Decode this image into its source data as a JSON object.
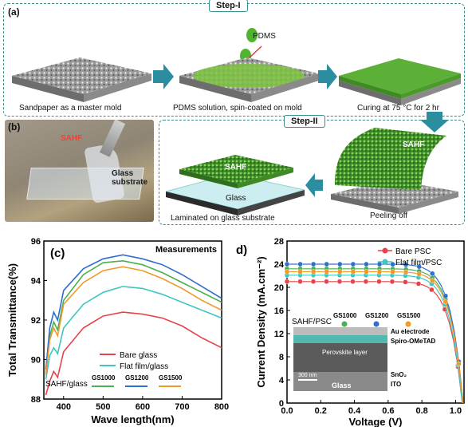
{
  "labels": {
    "a": "(a)",
    "b": "(b)",
    "c": "(c)",
    "d": "d)",
    "step1": "Step-I",
    "step2": "Step-II",
    "pdms": "PDMS",
    "cap_sandpaper": "Sandpaper as a master mold",
    "cap_spin": "PDMS solution, spin-coated on mold",
    "cap_curing": "Curing at 75 °C for 2 hr",
    "cap_peel": "Peeling off",
    "cap_laminated": "Laminated on glass substrate",
    "sahf": "SAHF",
    "glass": "Glass",
    "photo_sahf": "SAHF",
    "photo_glass": "Glass substrate"
  },
  "chart_data": [
    {
      "type": "line",
      "title": "Measurements",
      "xlabel": "Wave length(nm)",
      "ylabel": "Total Transmittance(%)",
      "xlim": [
        350,
        800
      ],
      "ylim": [
        88,
        96
      ],
      "xticks": [
        "400",
        "500",
        "600",
        "700",
        "800"
      ],
      "yticks": [
        "88",
        "90",
        "92",
        "94",
        "96"
      ],
      "legend": [
        "Bare glass",
        "Flat film/glass"
      ],
      "legend2_prefix": "SAHF/glass",
      "legend2": [
        "GS1000",
        "GS1200",
        "GS1500"
      ],
      "series": [
        {
          "name": "Bare glass",
          "color": "#e8424a",
          "x": [
            355,
            365,
            375,
            385,
            400,
            450,
            500,
            550,
            600,
            650,
            700,
            750,
            800
          ],
          "y": [
            88.2,
            88.9,
            89.4,
            89.1,
            90.4,
            91.6,
            92.2,
            92.4,
            92.3,
            92.1,
            91.7,
            91.1,
            90.6
          ]
        },
        {
          "name": "Flat film/glass",
          "color": "#3ec6c0",
          "x": [
            355,
            365,
            375,
            385,
            400,
            450,
            500,
            550,
            600,
            650,
            700,
            750,
            800
          ],
          "y": [
            89.0,
            90.2,
            90.6,
            90.3,
            91.6,
            92.8,
            93.4,
            93.7,
            93.6,
            93.3,
            92.9,
            92.5,
            92.1
          ]
        },
        {
          "name": "GS1000",
          "color": "#4caf50",
          "x": [
            355,
            365,
            375,
            385,
            400,
            450,
            500,
            550,
            600,
            650,
            700,
            750,
            800
          ],
          "y": [
            89.3,
            91.2,
            91.9,
            91.5,
            93.0,
            94.3,
            94.9,
            95.0,
            94.8,
            94.4,
            93.9,
            93.4,
            92.9
          ]
        },
        {
          "name": "GS1200",
          "color": "#2e6fd0",
          "x": [
            355,
            365,
            375,
            385,
            400,
            450,
            500,
            550,
            600,
            650,
            700,
            750,
            800
          ],
          "y": [
            89.5,
            91.6,
            92.4,
            92.0,
            93.5,
            94.6,
            95.1,
            95.3,
            95.1,
            94.8,
            94.3,
            93.7,
            93.1
          ]
        },
        {
          "name": "GS1500",
          "color": "#f09a2a",
          "x": [
            355,
            365,
            375,
            385,
            400,
            450,
            500,
            550,
            600,
            650,
            700,
            750,
            800
          ],
          "y": [
            89.2,
            91.0,
            91.6,
            91.2,
            92.8,
            93.9,
            94.5,
            94.7,
            94.5,
            94.1,
            93.6,
            93.0,
            92.5
          ]
        }
      ]
    },
    {
      "type": "line",
      "xlabel": "Voltage (V)",
      "ylabel": "Current Density (mA.cm⁻²)",
      "xlim": [
        0,
        1.05
      ],
      "ylim": [
        0,
        28
      ],
      "xticks": [
        "0.0",
        "0.2",
        "0.4",
        "0.6",
        "0.8",
        "1.0"
      ],
      "yticks": [
        "0",
        "4",
        "8",
        "12",
        "16",
        "20",
        "24",
        "28"
      ],
      "legend": [
        "Bare PSC",
        "Flat film/PSC"
      ],
      "legend2_prefix": "SAHF/PSC",
      "legend2": [
        "GS1000",
        "GS1200",
        "GS1500"
      ],
      "inset_labels": {
        "au": "Au electrode",
        "spiro": "Spiro-OMeTAD",
        "perov": "Perovskite layer",
        "sno2": "SnO₂",
        "ito": "ITO",
        "glass": "Glass",
        "scale": "300 nm"
      },
      "series": [
        {
          "name": "Bare PSC",
          "color": "#e8424a",
          "jsc": 21.0,
          "voc": 1.04
        },
        {
          "name": "Flat film/PSC",
          "color": "#3ec6c0",
          "jsc": 22.1,
          "voc": 1.04
        },
        {
          "name": "GS1000",
          "color": "#4caf50",
          "jsc": 23.2,
          "voc": 1.045
        },
        {
          "name": "GS1200",
          "color": "#2e6fd0",
          "jsc": 24.0,
          "voc": 1.045
        },
        {
          "name": "GS1500",
          "color": "#f09a2a",
          "jsc": 22.7,
          "voc": 1.045
        }
      ]
    }
  ]
}
